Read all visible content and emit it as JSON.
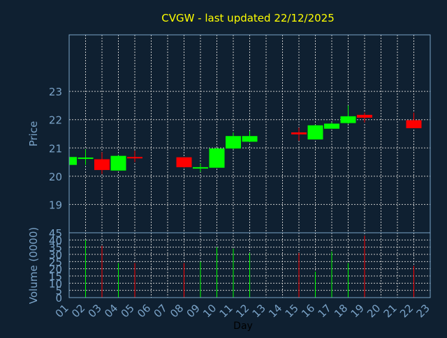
{
  "chart_data": {
    "type": "candlestick",
    "title": "CVGW - last updated 22/12/2025",
    "xlabel": "Day",
    "ylabel_price": "Price",
    "ylabel_volume": "Volume (0000)",
    "x_ticks": [
      "01",
      "02",
      "03",
      "04",
      "05",
      "06",
      "07",
      "08",
      "09",
      "10",
      "11",
      "12",
      "13",
      "14",
      "15",
      "16",
      "17",
      "18",
      "19",
      "20",
      "21",
      "22",
      "23"
    ],
    "price_ylim": [
      18,
      25
    ],
    "price_yticks": [
      19,
      20,
      21,
      22,
      23
    ],
    "volume_ylim": [
      0,
      45
    ],
    "volume_yticks": [
      0,
      5,
      10,
      15,
      20,
      25,
      30,
      35,
      40,
      45
    ],
    "grid": true,
    "colors": {
      "background": "#0f2031",
      "up": "#00ff00",
      "down": "#ff0000",
      "grid": "#c8c8c8",
      "axis_text": "#7aa3c8",
      "title": "#ffff00",
      "frame": "#7aa3c8"
    },
    "candles": [
      {
        "day": "01",
        "open": 20.4,
        "high": 20.72,
        "low": 20.4,
        "close": 20.68,
        "volume": null
      },
      {
        "day": "02",
        "open": 20.62,
        "high": 20.95,
        "low": 20.4,
        "close": 20.66,
        "volume": 40
      },
      {
        "day": "03",
        "open": 20.6,
        "high": 20.85,
        "low": 20.08,
        "close": 20.22,
        "volume": 36
      },
      {
        "day": "04",
        "open": 20.2,
        "high": 20.75,
        "low": 20.2,
        "close": 20.72,
        "volume": 24
      },
      {
        "day": "05",
        "open": 20.68,
        "high": 20.9,
        "low": 20.5,
        "close": 20.65,
        "volume": 24
      },
      {
        "day": "08",
        "open": 20.67,
        "high": 20.67,
        "low": 20.3,
        "close": 20.32,
        "volume": 24
      },
      {
        "day": "09",
        "open": 20.28,
        "high": 20.45,
        "low": 20.15,
        "close": 20.32,
        "volume": 25
      },
      {
        "day": "10",
        "open": 20.3,
        "high": 21.0,
        "low": 20.3,
        "close": 20.98,
        "volume": 35
      },
      {
        "day": "11",
        "open": 20.98,
        "high": 21.55,
        "low": 20.95,
        "close": 21.42,
        "volume": 34
      },
      {
        "day": "12",
        "open": 21.22,
        "high": 21.6,
        "low": 21.2,
        "close": 21.42,
        "volume": 31
      },
      {
        "day": "15",
        "open": 21.55,
        "high": 21.72,
        "low": 21.25,
        "close": 21.48,
        "volume": 31
      },
      {
        "day": "16",
        "open": 21.3,
        "high": 21.82,
        "low": 21.3,
        "close": 21.8,
        "volume": 18
      },
      {
        "day": "17",
        "open": 21.68,
        "high": 21.9,
        "low": 21.68,
        "close": 21.86,
        "volume": 32
      },
      {
        "day": "18",
        "open": 21.88,
        "high": 22.5,
        "low": 21.85,
        "close": 22.12,
        "volume": 24
      },
      {
        "day": "19",
        "open": 22.17,
        "high": 22.25,
        "low": 21.9,
        "close": 22.07,
        "volume": 43
      },
      {
        "day": "22",
        "open": 21.98,
        "high": 22.25,
        "low": 21.7,
        "close": 21.7,
        "volume": 22
      }
    ]
  }
}
